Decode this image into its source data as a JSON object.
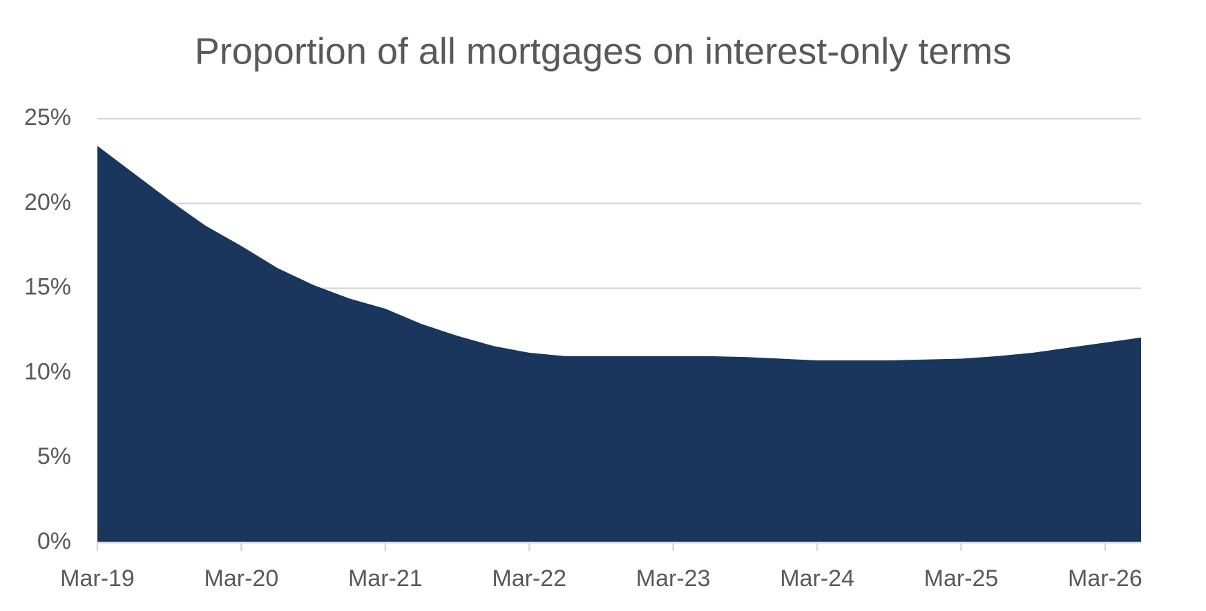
{
  "chart_data": {
    "type": "area",
    "title": "Proportion of all mortgages on interest-only terms",
    "categories": [
      "Mar-19",
      null,
      null,
      null,
      "Mar-20",
      null,
      null,
      null,
      "Mar-21",
      null,
      null,
      null,
      "Mar-22",
      null,
      null,
      null,
      "Mar-23",
      null,
      null,
      null,
      "Mar-24",
      null,
      null,
      null,
      "Mar-25",
      null,
      null,
      null,
      "Mar-26",
      null
    ],
    "values": [
      23.4,
      21.8,
      20.2,
      18.7,
      17.5,
      16.2,
      15.2,
      14.4,
      13.8,
      12.9,
      12.2,
      11.6,
      11.2,
      11.0,
      11.0,
      11.0,
      11.0,
      11.0,
      10.95,
      10.85,
      10.75,
      10.75,
      10.75,
      10.8,
      10.85,
      11.0,
      11.2,
      11.5,
      11.8,
      12.1
    ],
    "color": "#1a365d",
    "ylim": [
      0,
      25
    ],
    "yticks": [
      {
        "value": 0,
        "label": "0%"
      },
      {
        "value": 5,
        "label": "5%"
      },
      {
        "value": 10,
        "label": "10%"
      },
      {
        "value": 15,
        "label": "15%"
      },
      {
        "value": 20,
        "label": "20%"
      },
      {
        "value": 25,
        "label": "25%"
      }
    ],
    "grid": true
  }
}
